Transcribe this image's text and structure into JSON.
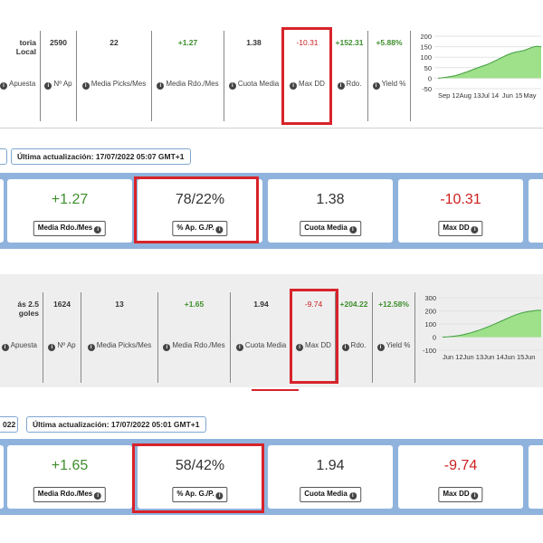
{
  "section1": {
    "stats": {
      "name": "toria Local",
      "name_label": "Apuesta",
      "n_ap": "2590",
      "n_ap_label": "Nº Ap",
      "picks": "22",
      "picks_label": "Media Picks/Mes",
      "rdo_mes": "+1.27",
      "rdo_mes_label": "Media Rdo./Mes",
      "cuota": "1.38",
      "cuota_label": "Cuota Media",
      "maxdd": "-10.31",
      "maxdd_label": "Max DD",
      "rdo": "+152.31",
      "rdo_label": "Rdo.",
      "yield": "+5.88%",
      "yield_label": "Yield %"
    },
    "chart": {
      "y_ticks": [
        "200",
        "150",
        "100",
        "50",
        "0",
        "-50"
      ],
      "x_ticks": [
        "Sep 12",
        "Aug 13",
        "Jul 14",
        "Jun 15",
        "May"
      ],
      "fill_color": "#9fe08a",
      "line_color": "#3e9e3e",
      "series": [
        0,
        2,
        5,
        8,
        12,
        18,
        25,
        32,
        40,
        48,
        55,
        62,
        70,
        80,
        90,
        100,
        110,
        118,
        124,
        128,
        132,
        140,
        148,
        152,
        150
      ]
    },
    "update_label": "Última actualización: 17/07/2022 05:07 GMT+1",
    "cards": {
      "rdo_mes": "+1.27",
      "rdo_mes_label": "Media Rdo./Mes",
      "pct": "78/22%",
      "pct_label": "% Ap. G./P.",
      "cuota": "1.38",
      "cuota_label": "Cuota Media",
      "maxdd": "-10.31",
      "maxdd_label": "Max DD"
    }
  },
  "section2": {
    "stats": {
      "name": "ás 2.5 goles",
      "name_label": "Apuesta",
      "n_ap": "1624",
      "n_ap_label": "Nº Ap",
      "picks": "13",
      "picks_label": "Media Picks/Mes",
      "rdo_mes": "+1.65",
      "rdo_mes_label": "Media Rdo./Mes",
      "cuota": "1.94",
      "cuota_label": "Cuota Media",
      "maxdd": "-9.74",
      "maxdd_label": "Max DD",
      "rdo": "+204.22",
      "rdo_label": "Rdo.",
      "yield": "+12.58%",
      "yield_label": "Yield %"
    },
    "chart": {
      "y_ticks": [
        "300",
        "200",
        "100",
        "0",
        "-100"
      ],
      "x_ticks": [
        "Jun 12",
        "Jun 13",
        "Jun 14",
        "Jun 15",
        "Jun"
      ],
      "fill_color": "#9fe08a",
      "line_color": "#3e9e3e",
      "series": [
        0,
        2,
        4,
        8,
        12,
        18,
        26,
        34,
        44,
        54,
        66,
        78,
        90,
        104,
        118,
        132,
        146,
        160,
        172,
        182,
        190,
        196,
        200,
        204,
        204
      ]
    },
    "date_label": "022",
    "update_label": "Última actualización: 17/07/2022 05:01 GMT+1",
    "cards": {
      "rdo_mes": "+1.65",
      "rdo_mes_label": "Media Rdo./Mes",
      "pct": "58/42%",
      "pct_label": "% Ap. G./P.",
      "cuota": "1.94",
      "cuota_label": "Cuota Media",
      "maxdd": "-9.74",
      "maxdd_label": "Max DD"
    }
  }
}
